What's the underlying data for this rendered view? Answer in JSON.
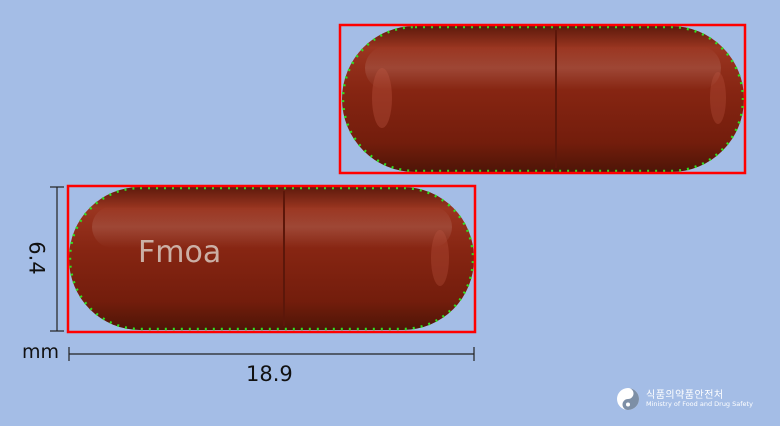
{
  "imprint": "Fmoa",
  "dimensions": {
    "width_value": "18.9",
    "height_value": "6.4",
    "unit": "mm"
  },
  "logo": {
    "korean": "식품의약품안전처",
    "english": "Ministry of Food and Drug Safety"
  },
  "colors": {
    "background": "#a4bde6",
    "capsule": "#8a2614",
    "outline": "#ff0000",
    "edge_points": "#33dd22"
  }
}
